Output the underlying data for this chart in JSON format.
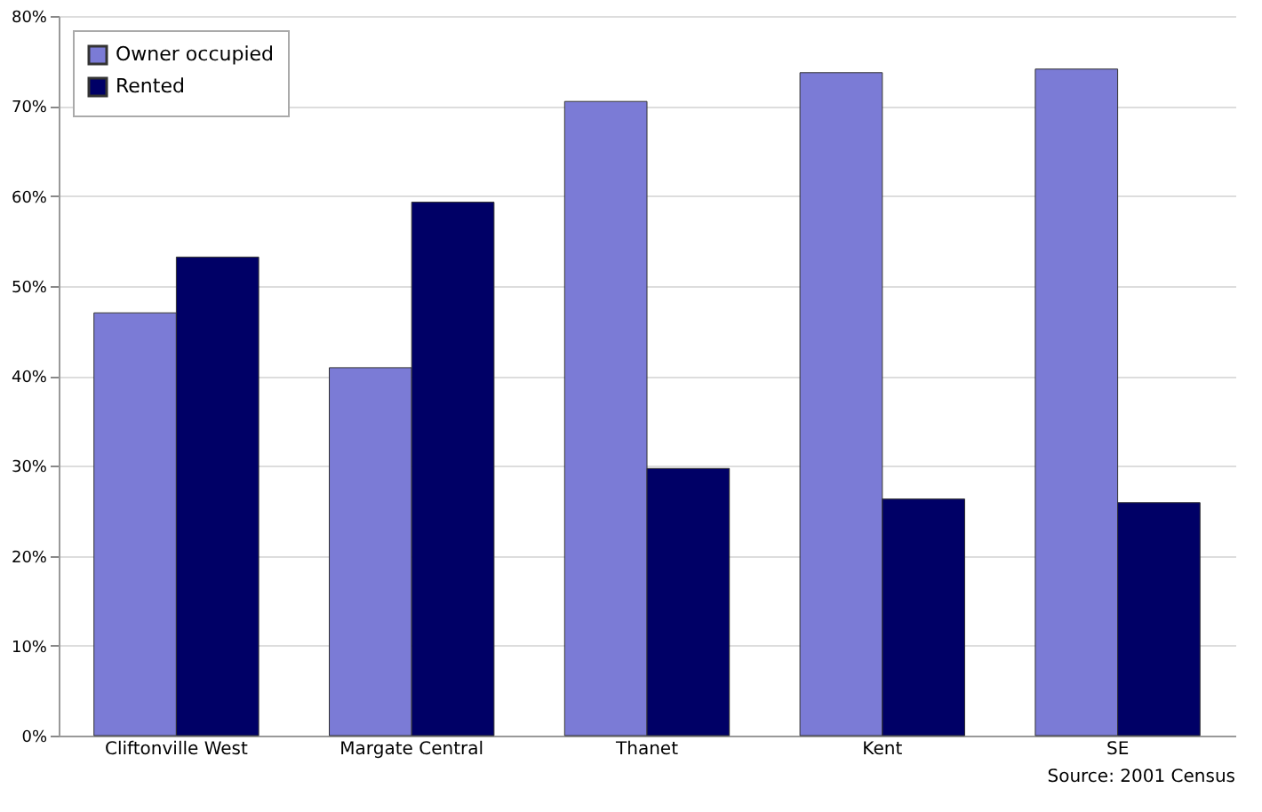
{
  "chart_data": {
    "type": "bar",
    "categories": [
      "Cliftonville West",
      "Margate Central",
      "Thanet",
      "Kent",
      "SE"
    ],
    "series": [
      {
        "name": "Owner occupied",
        "color": "#7b7bd6",
        "values": [
          47.0,
          40.9,
          70.5,
          73.7,
          74.1
        ]
      },
      {
        "name": "Rented",
        "color": "#000066",
        "values": [
          53.2,
          59.3,
          29.7,
          26.3,
          25.9
        ]
      }
    ],
    "ylim": [
      0,
      80
    ],
    "yticks": [
      {
        "value": 0,
        "label": "0%"
      },
      {
        "value": 10,
        "label": "10%"
      },
      {
        "value": 20,
        "label": "20%"
      },
      {
        "value": 30,
        "label": "30%"
      },
      {
        "value": 40,
        "label": "40%"
      },
      {
        "value": 50,
        "label": "50%"
      },
      {
        "value": 60,
        "label": "60%"
      },
      {
        "value": 70,
        "label": "70%"
      },
      {
        "value": 80,
        "label": "80%"
      }
    ],
    "grid": "y",
    "legend": "top left",
    "annotations": [
      "Source: 2001 Census"
    ]
  }
}
